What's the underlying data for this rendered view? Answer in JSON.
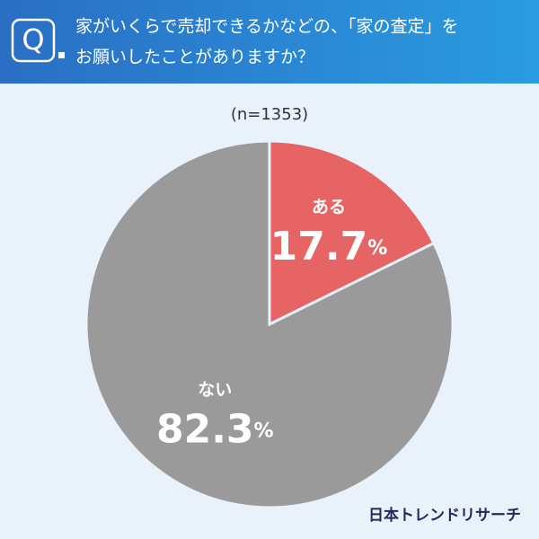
{
  "header": {
    "icon": "Q",
    "title_lines": [
      "家がいくらで売却できるかなどの、「家の査定」を",
      "お願いしたことがありますか？"
    ]
  },
  "chart_data": {
    "type": "pie",
    "subtitle": "(n=1353)",
    "unit": "%",
    "categories": [
      "ある",
      "ない"
    ],
    "values": [
      17.7,
      82.3
    ],
    "colors": [
      "#e66464",
      "#9a9a9a"
    ]
  },
  "footer": {
    "brand": "日本トレンドリサーチ"
  }
}
